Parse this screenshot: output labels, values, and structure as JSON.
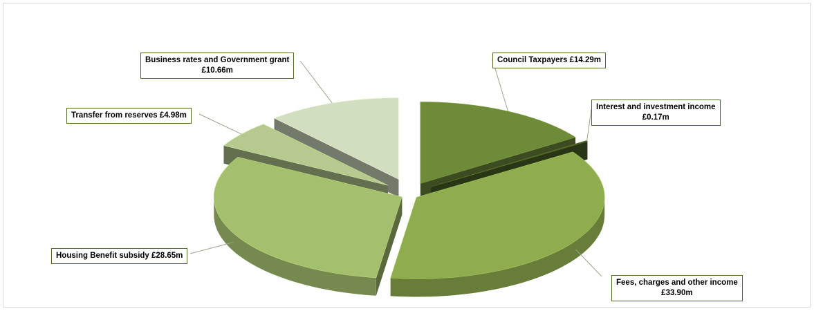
{
  "chart_data": {
    "type": "pie",
    "title": "",
    "slices": [
      {
        "name": "Council Taxpayers",
        "value": 14.29,
        "value_label": "£14.29m",
        "label_lines": [
          "Council Taxpayers £14.29m"
        ],
        "color": "#6e8b3a"
      },
      {
        "name": "Interest and investment income",
        "value": 0.17,
        "value_label": "£0.17m",
        "label_lines": [
          "Interest and investment income",
          "£0.17m"
        ],
        "color": "#4a6326"
      },
      {
        "name": "Fees, charges and other income",
        "value": 33.9,
        "value_label": "£33.90m",
        "label_lines": [
          "Fees, charges and other income",
          "£33.90m"
        ],
        "color": "#8fad4f"
      },
      {
        "name": "Housing Benefit subsidy",
        "value": 28.65,
        "value_label": "£28.65m",
        "label_lines": [
          "Housing Benefit subsidy £28.65m"
        ],
        "color": "#a4bf6e"
      },
      {
        "name": "Transfer from reserves",
        "value": 4.98,
        "value_label": "£4.98m",
        "label_lines": [
          "Transfer from reserves £4.98m"
        ],
        "color": "#b6c98f"
      },
      {
        "name": "Business rates and Government grant",
        "value": 10.66,
        "value_label": "£10.66m",
        "label_lines": [
          "Business rates and Government grant",
          "£10.66m"
        ],
        "color": "#d2dec0"
      }
    ],
    "legend": "none",
    "style": "3d-exploded"
  }
}
